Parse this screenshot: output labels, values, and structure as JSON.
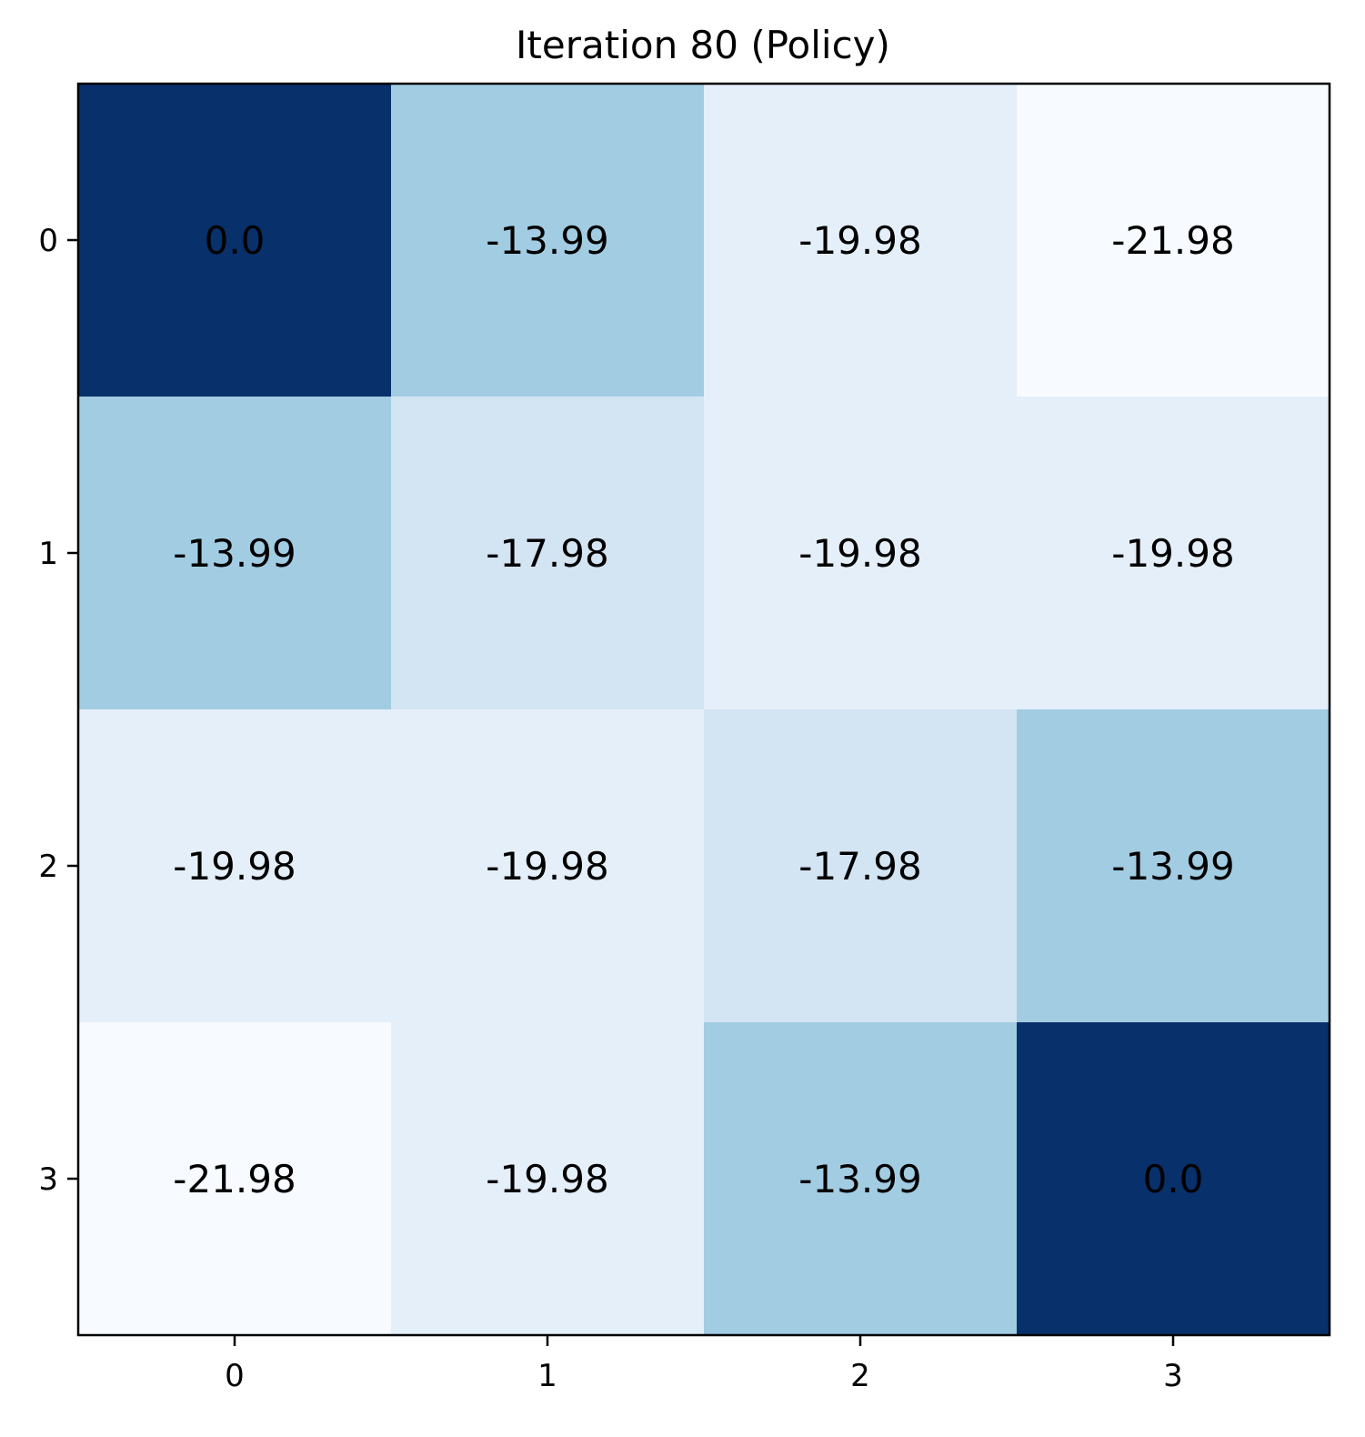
{
  "chart_data": {
    "type": "heatmap",
    "title": "Iteration 80 (Policy)",
    "colormap": "Blues",
    "x_ticks": [
      "0",
      "1",
      "2",
      "3"
    ],
    "y_ticks": [
      "0",
      "1",
      "2",
      "3"
    ],
    "xlabel": "",
    "ylabel": "",
    "grid": false,
    "values": [
      [
        0.0,
        -13.99,
        -19.98,
        -21.98
      ],
      [
        -13.99,
        -17.98,
        -19.98,
        -19.98
      ],
      [
        -19.98,
        -19.98,
        -17.98,
        -13.99
      ],
      [
        -21.98,
        -19.98,
        -13.99,
        0.0
      ]
    ],
    "cell_labels": [
      [
        "0.0",
        "-13.99",
        "-19.98",
        "-21.98"
      ],
      [
        "-13.99",
        "-17.98",
        "-19.98",
        "-19.98"
      ],
      [
        "-19.98",
        "-19.98",
        "-17.98",
        "-13.99"
      ],
      [
        "-21.98",
        "-19.98",
        "-13.99",
        "0.0"
      ]
    ],
    "color_range": [
      -21.98,
      0.0
    ],
    "colors": {
      "max": "#08306b",
      "mid": "#57a0cd",
      "light": "#abcee4",
      "lighter": "#d5e5f3",
      "min": "#f7fbff"
    }
  }
}
